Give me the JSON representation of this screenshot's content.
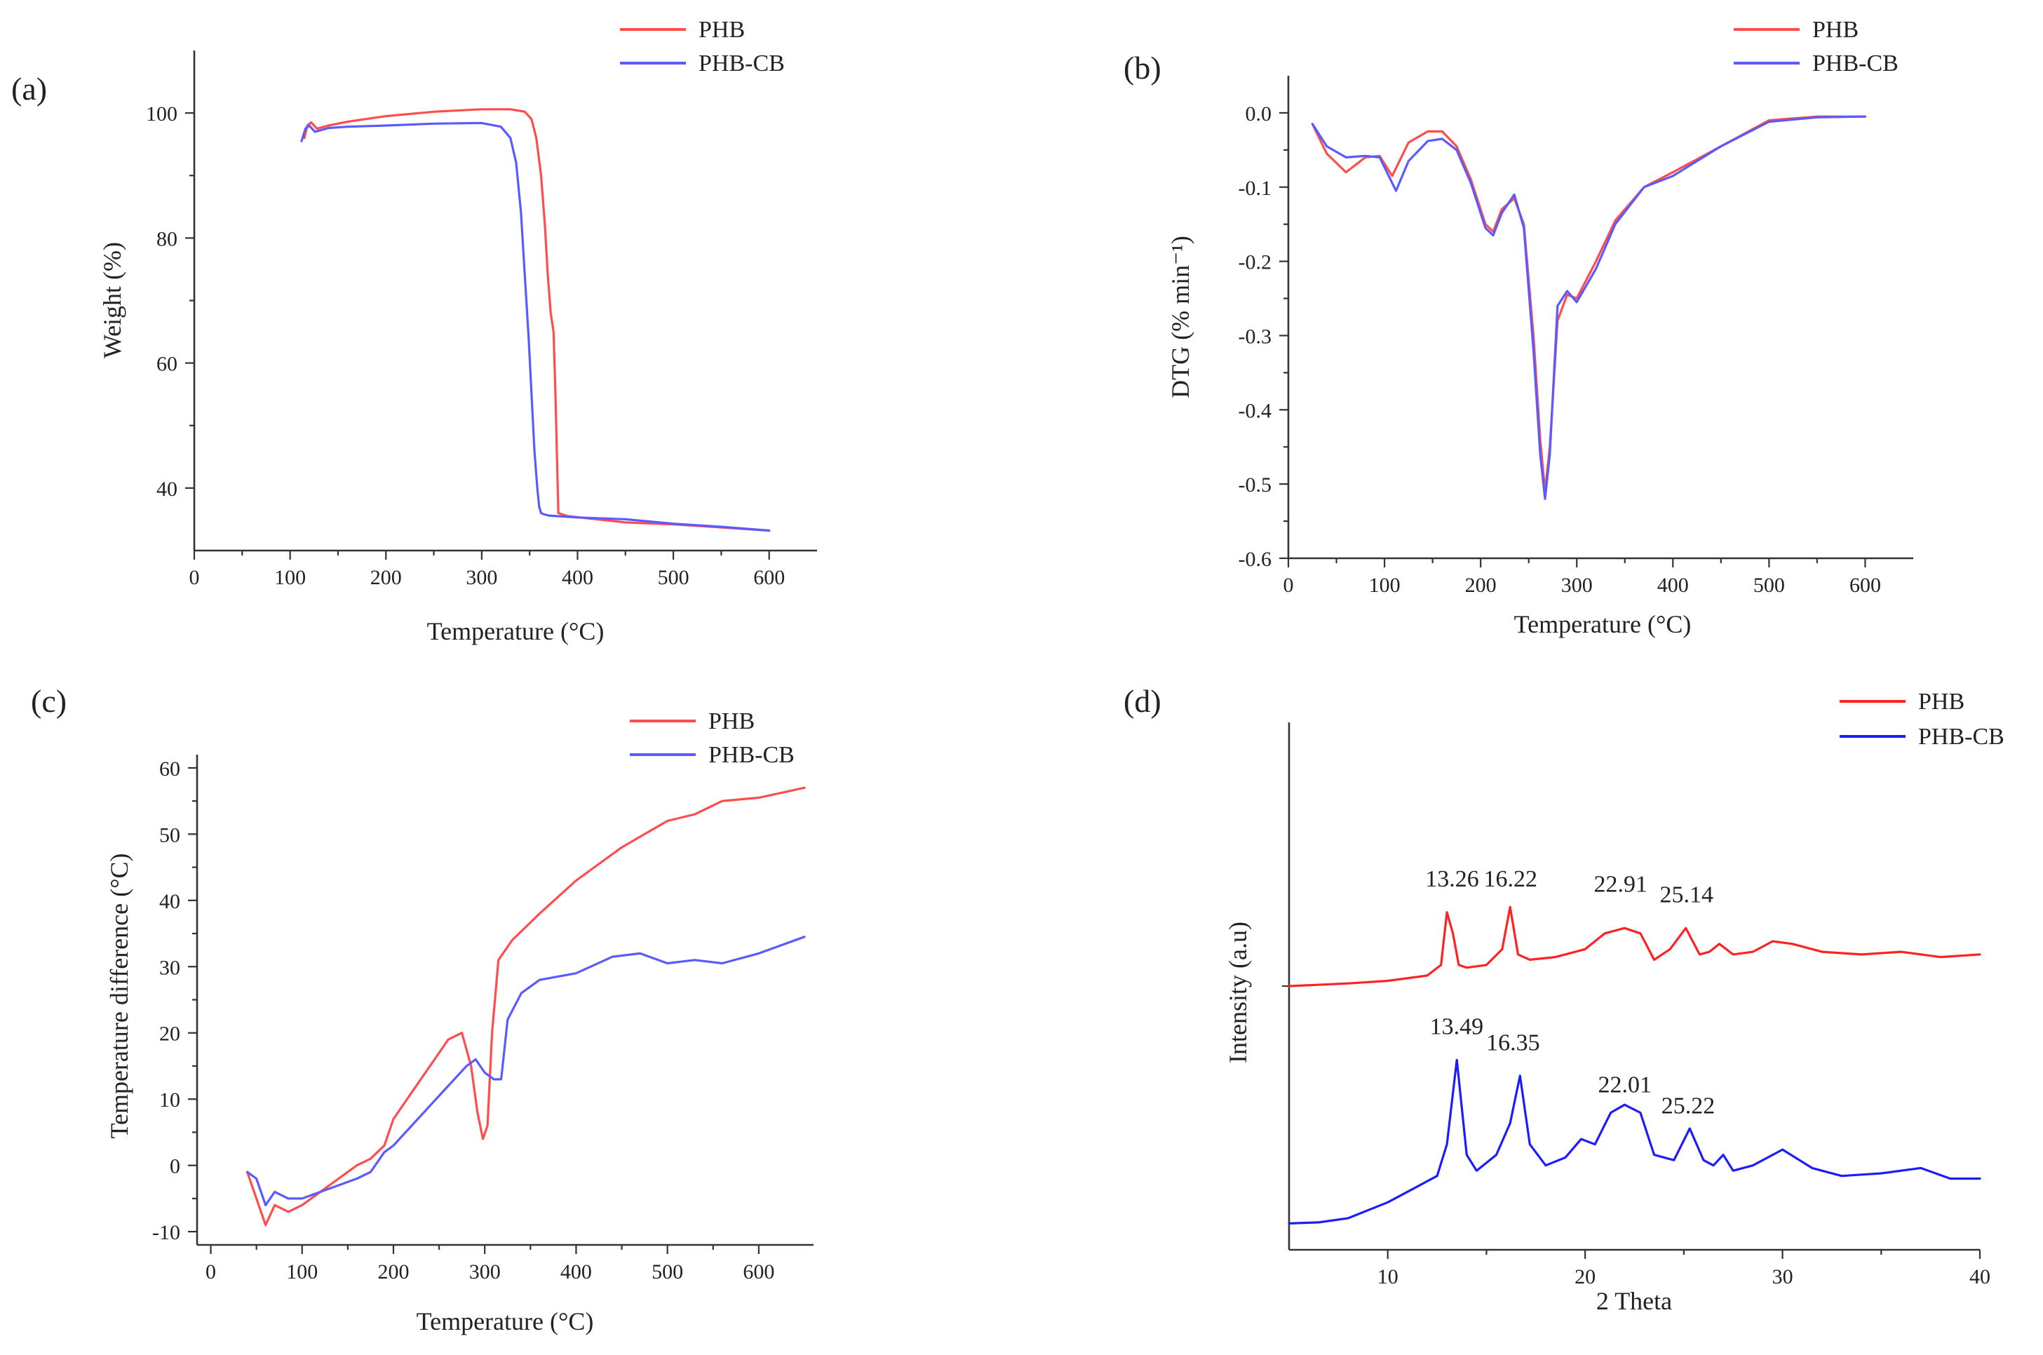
{
  "colors": {
    "phb": "#ff4d4d",
    "phb_cb": "#5a5aff",
    "phb_d": "#ff2222",
    "phb_cb_d": "#1c1cff"
  },
  "chart_data": [
    {
      "id": "a",
      "panel_label": "(a)",
      "type": "line",
      "title": "",
      "xlabel": "Temperature (°C)",
      "ylabel": "Weight (%)",
      "xlim": [
        0,
        650
      ],
      "ylim": [
        30,
        110
      ],
      "xticks": [
        0,
        100,
        200,
        300,
        400,
        500,
        600
      ],
      "yticks": [
        40,
        60,
        80,
        100
      ],
      "tick_labels_visible": true,
      "legend": {
        "position": "top-right",
        "entries": [
          "PHB",
          "PHB-CB"
        ]
      },
      "series": [
        {
          "name": "PHB",
          "color_key": "phb",
          "x": [
            115,
            118,
            122,
            128,
            140,
            160,
            200,
            250,
            300,
            330,
            345,
            352,
            357,
            362,
            366,
            369,
            372,
            375,
            377,
            379,
            380,
            390,
            420,
            450,
            500,
            550,
            600
          ],
          "y": [
            96,
            98,
            98.5,
            97.5,
            98,
            98.6,
            99.5,
            100.2,
            100.6,
            100.6,
            100.2,
            99,
            96,
            90,
            82,
            74,
            68,
            65,
            55,
            42,
            36,
            35.5,
            35,
            34.5,
            34.2,
            33.7,
            33.2
          ]
        },
        {
          "name": "PHB-CB",
          "color_key": "phb_cb",
          "x": [
            112,
            116,
            120,
            126,
            140,
            160,
            200,
            250,
            300,
            320,
            330,
            336,
            341,
            345,
            349,
            352,
            355,
            358,
            360,
            362,
            365,
            370,
            400,
            450,
            500,
            550,
            600
          ],
          "y": [
            95.5,
            97.5,
            98,
            97,
            97.6,
            97.8,
            98,
            98.3,
            98.4,
            97.8,
            96,
            92,
            84,
            74,
            64,
            55,
            46,
            40,
            37,
            36,
            35.8,
            35.6,
            35.3,
            35,
            34.3,
            33.8,
            33.2
          ]
        }
      ]
    },
    {
      "id": "b",
      "panel_label": "(b)",
      "type": "line",
      "title": "",
      "xlabel": "Temperature (°C)",
      "ylabel": "DTG (% min⁻¹)",
      "xlim": [
        0,
        650
      ],
      "ylim": [
        -0.6,
        0.05
      ],
      "xticks": [
        0,
        100,
        200,
        300,
        400,
        500,
        600
      ],
      "yticks": [
        0.0,
        -0.1,
        -0.2,
        -0.3,
        -0.4,
        -0.5,
        -0.6
      ],
      "ytick_labels": [
        "0.0",
        "-0.1",
        "-0.2",
        "-0.3",
        "-0.4",
        "-0.5",
        "-0.6"
      ],
      "tick_labels_visible": true,
      "legend": {
        "position": "top-right",
        "entries": [
          "PHB",
          "PHB-CB"
        ]
      },
      "series": [
        {
          "name": "PHB",
          "color_key": "phb",
          "x": [
            25,
            40,
            60,
            80,
            95,
            108,
            125,
            145,
            160,
            175,
            190,
            205,
            213,
            222,
            235,
            245,
            255,
            262,
            267,
            272,
            280,
            290,
            300,
            320,
            340,
            370,
            400,
            450,
            500,
            550,
            600
          ],
          "y": [
            -0.015,
            -0.055,
            -0.08,
            -0.06,
            -0.058,
            -0.085,
            -0.04,
            -0.025,
            -0.025,
            -0.045,
            -0.09,
            -0.15,
            -0.16,
            -0.13,
            -0.115,
            -0.15,
            -0.3,
            -0.44,
            -0.51,
            -0.45,
            -0.28,
            -0.245,
            -0.25,
            -0.2,
            -0.145,
            -0.1,
            -0.08,
            -0.045,
            -0.01,
            -0.005,
            -0.005
          ]
        },
        {
          "name": "PHB-CB",
          "color_key": "phb_cb",
          "x": [
            25,
            40,
            60,
            80,
            95,
            112,
            125,
            145,
            160,
            175,
            190,
            205,
            213,
            222,
            235,
            245,
            255,
            262,
            267,
            272,
            280,
            290,
            300,
            320,
            340,
            370,
            400,
            450,
            500,
            550,
            600
          ],
          "y": [
            -0.015,
            -0.045,
            -0.06,
            -0.058,
            -0.06,
            -0.105,
            -0.065,
            -0.038,
            -0.035,
            -0.05,
            -0.095,
            -0.155,
            -0.165,
            -0.135,
            -0.11,
            -0.155,
            -0.32,
            -0.46,
            -0.52,
            -0.46,
            -0.26,
            -0.24,
            -0.255,
            -0.21,
            -0.15,
            -0.1,
            -0.085,
            -0.045,
            -0.012,
            -0.006,
            -0.005
          ]
        }
      ]
    },
    {
      "id": "c",
      "panel_label": "(c)",
      "type": "line",
      "title": "",
      "xlabel": "Temperature (°C)",
      "ylabel": "Temperature difference (°C)",
      "xlim": [
        -15,
        660
      ],
      "ylim": [
        -12,
        62
      ],
      "xticks": [
        0,
        100,
        200,
        300,
        400,
        500,
        600
      ],
      "yticks": [
        -10,
        0,
        10,
        20,
        30,
        40,
        50,
        60
      ],
      "tick_labels_visible": true,
      "legend": {
        "position": "top-right",
        "entries": [
          "PHB",
          "PHB-CB"
        ]
      },
      "series": [
        {
          "name": "PHB",
          "color_key": "phb",
          "x": [
            40,
            50,
            60,
            70,
            85,
            100,
            120,
            140,
            160,
            175,
            190,
            200,
            220,
            240,
            260,
            275,
            285,
            292,
            298,
            303,
            308,
            315,
            330,
            360,
            400,
            450,
            500,
            530,
            560,
            600,
            650
          ],
          "y": [
            -1,
            -5,
            -9,
            -6,
            -7,
            -6,
            -4,
            -2,
            0,
            1,
            3,
            7,
            11,
            15,
            19,
            20,
            15,
            8,
            4,
            6,
            20,
            31,
            34,
            38,
            43,
            48,
            52,
            53,
            55,
            55.5,
            57
          ]
        },
        {
          "name": "PHB-CB",
          "color_key": "phb_cb",
          "x": [
            40,
            50,
            60,
            70,
            85,
            100,
            120,
            140,
            160,
            175,
            190,
            200,
            220,
            240,
            260,
            280,
            290,
            300,
            310,
            318,
            325,
            340,
            360,
            400,
            440,
            470,
            500,
            530,
            560,
            600,
            650
          ],
          "y": [
            -1,
            -2,
            -6,
            -4,
            -5,
            -5,
            -4,
            -3,
            -2,
            -1,
            2,
            3,
            6,
            9,
            12,
            15,
            16,
            14,
            13,
            13,
            22,
            26,
            28,
            29,
            31.5,
            32,
            30.5,
            31,
            30.5,
            32,
            34.5
          ]
        }
      ]
    },
    {
      "id": "d",
      "panel_label": "(d)",
      "type": "line",
      "title": "",
      "xlabel": "2 Theta",
      "ylabel": "Intensity (a.u)",
      "xlim": [
        5,
        40
      ],
      "ylim": [
        0,
        100
      ],
      "xticks": [
        10,
        20,
        30,
        40
      ],
      "yticks": [],
      "tick_labels_visible": true,
      "legend": {
        "position": "top-right",
        "entries": [
          "PHB",
          "PHB-CB"
        ]
      },
      "annotations": [
        {
          "text": "13.26",
          "x": 13.26,
          "y": 67,
          "series": "PHB"
        },
        {
          "text": "16.22",
          "x": 16.22,
          "y": 67,
          "series": "PHB"
        },
        {
          "text": "22.91",
          "x": 21.8,
          "y": 66,
          "series": "PHB"
        },
        {
          "text": "25.14",
          "x": 25.14,
          "y": 64,
          "series": "PHB"
        },
        {
          "text": "13.49",
          "x": 13.49,
          "y": 39,
          "series": "PHB-CB"
        },
        {
          "text": "16.35",
          "x": 16.35,
          "y": 36,
          "series": "PHB-CB"
        },
        {
          "text": "22.01",
          "x": 22.01,
          "y": 28,
          "series": "PHB-CB"
        },
        {
          "text": "25.22",
          "x": 25.22,
          "y": 24,
          "series": "PHB-CB"
        }
      ],
      "series": [
        {
          "name": "PHB",
          "color_key": "phb_d",
          "x": [
            5,
            8,
            10,
            12,
            12.7,
            13.0,
            13.3,
            13.6,
            14,
            15,
            15.8,
            16.2,
            16.6,
            17.2,
            18.5,
            20,
            21,
            22,
            22.8,
            23.5,
            24.3,
            25.1,
            25.8,
            26.3,
            26.8,
            27.5,
            28.5,
            29.5,
            30.5,
            32,
            34,
            36,
            38,
            40
          ],
          "y": [
            50,
            50.5,
            51,
            52,
            54,
            64,
            60,
            54,
            53.5,
            54,
            57,
            65,
            56,
            55,
            55.5,
            57,
            60,
            61,
            60,
            55,
            57,
            61,
            56,
            56.5,
            58,
            56,
            56.5,
            58.5,
            58,
            56.5,
            56,
            56.5,
            55.5,
            56
          ]
        },
        {
          "name": "PHB-CB",
          "color_key": "phb_cb_d",
          "x": [
            5,
            6.5,
            8,
            10,
            11.5,
            12.5,
            13.0,
            13.5,
            14.0,
            14.5,
            15.5,
            16.2,
            16.7,
            17.2,
            18,
            19,
            19.8,
            20.5,
            21.3,
            22,
            22.8,
            23.5,
            24.5,
            25.3,
            26,
            26.5,
            27,
            27.5,
            28.5,
            30,
            31.5,
            33,
            35,
            37,
            38.5,
            40
          ],
          "y": [
            5,
            5.2,
            6,
            9,
            12,
            14,
            20,
            36,
            18,
            15,
            18,
            24,
            33,
            20,
            16,
            17.5,
            21,
            20,
            26,
            27.5,
            26,
            18,
            17,
            23,
            17,
            16,
            18,
            15,
            16,
            19,
            15.5,
            14,
            14.5,
            15.5,
            13.5,
            13.5
          ]
        }
      ]
    }
  ]
}
